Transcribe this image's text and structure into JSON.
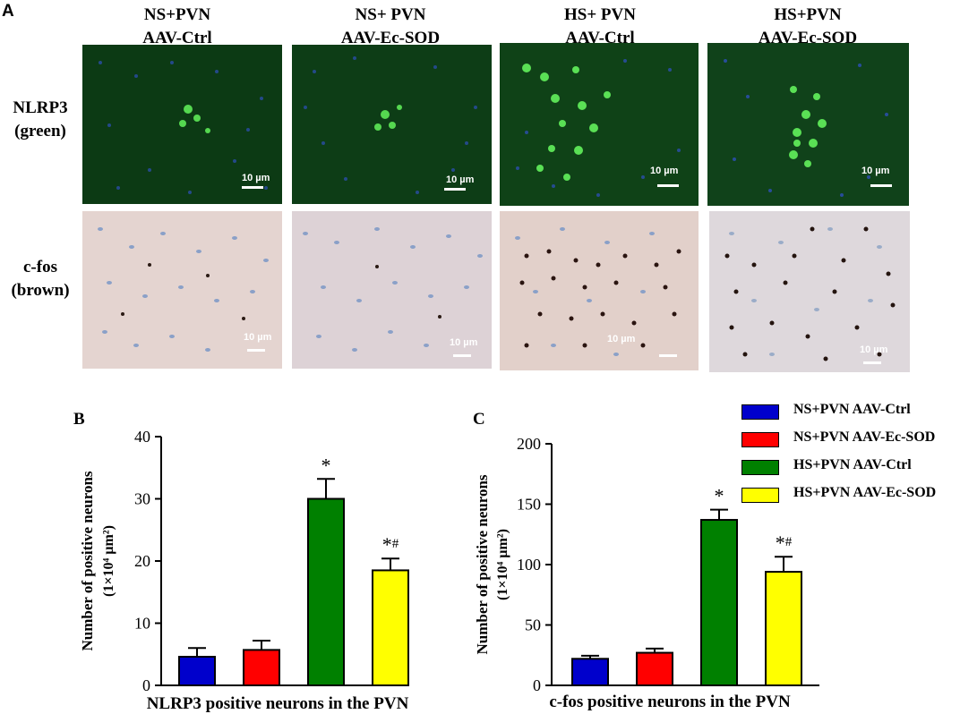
{
  "figure": {
    "panel_a_letter": "A",
    "columns": [
      {
        "line1": "NS+PVN",
        "line2": "AAV-Ctrl"
      },
      {
        "line1": "NS+ PVN",
        "line2": "AAV-Ec-SOD"
      },
      {
        "line1": "HS+ PVN",
        "line2": "AAV-Ctrl"
      },
      {
        "line1": "HS+PVN",
        "line2": "AAV-Ec-SOD"
      }
    ],
    "rows": [
      {
        "line1": "NLRP3",
        "line2": "(green)"
      },
      {
        "line1": "c-fos",
        "line2": "(brown)"
      }
    ],
    "scale_bar_label": "10 µm"
  },
  "legend": [
    {
      "label": "NS+PVN AAV-Ctrl",
      "color": "#0000cc"
    },
    {
      "label": "NS+PVN AAV-Ec-SOD",
      "color": "#ff0000"
    },
    {
      "label": "HS+PVN AAV-Ctrl",
      "color": "#008000"
    },
    {
      "label": "HS+PVN AAV-Ec-SOD",
      "color": "#ffff00"
    }
  ],
  "chart_data": [
    {
      "type": "bar",
      "panel": "B",
      "categories": [
        "NS+PVN AAV-Ctrl",
        "NS+PVN AAV-Ec-SOD",
        "HS+PVN AAV-Ctrl",
        "HS+PVN AAV-Ec-SOD"
      ],
      "values": [
        4.6,
        5.7,
        30,
        18.5
      ],
      "errors": [
        1.4,
        1.5,
        3.2,
        1.9
      ],
      "colors": [
        "#0000cc",
        "#ff0000",
        "#008000",
        "#ffff00"
      ],
      "annotations": [
        "",
        "",
        "*",
        "*#"
      ],
      "title": "",
      "xlabel": "NLRP3 positive neurons in the PVN",
      "ylabel_line1": "Number of positive neurons",
      "ylabel_line2": "(1×10⁴ µm²)",
      "ylim": [
        0,
        40
      ],
      "yticks": [
        0,
        10,
        20,
        30,
        40
      ],
      "grid": false
    },
    {
      "type": "bar",
      "panel": "C",
      "categories": [
        "NS+PVN AAV-Ctrl",
        "NS+PVN AAV-Ec-SOD",
        "HS+PVN AAV-Ctrl",
        "HS+PVN AAV-Ec-SOD"
      ],
      "values": [
        22,
        27,
        137,
        94
      ],
      "errors": [
        2.5,
        3.5,
        8.5,
        12.5
      ],
      "colors": [
        "#0000cc",
        "#ff0000",
        "#008000",
        "#ffff00"
      ],
      "annotations": [
        "",
        "",
        "*",
        "*#"
      ],
      "title": "",
      "xlabel": "c-fos positive neurons in the PVN",
      "ylabel_line1": "Number of positive neurons",
      "ylabel_line2": "(1×10⁴ µm²)",
      "ylim": [
        0,
        200
      ],
      "yticks": [
        0,
        50,
        100,
        150,
        200
      ],
      "grid": false
    }
  ]
}
